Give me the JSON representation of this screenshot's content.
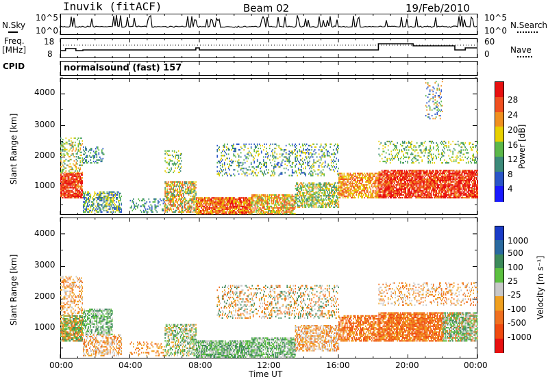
{
  "header": {
    "station": "Inuvik (fitACF)",
    "beam": "Beam 02",
    "date": "19/Feb/2010"
  },
  "left_labels": {
    "nsky": "N.Sky",
    "freq": "Freq.",
    "freq_unit": "[MHz]",
    "cpid": "CPID"
  },
  "right_labels": {
    "nsearch": "N.Search",
    "nave": "Nave"
  },
  "cpid_text": "normalsound (fast) 157",
  "noise_axis": {
    "left_top": "10^5",
    "left_bottom": "10^0",
    "right_top": "10^5",
    "right_bottom": "10^0"
  },
  "freq_axis": {
    "left_top": "18",
    "left_bottom": "8",
    "right_top": "60",
    "right_bottom": "0"
  },
  "chart_data": [
    {
      "type": "heatmap",
      "panel": "power",
      "ylabel": "Slant Range [km]",
      "yticks": [
        "1000",
        "2000",
        "3000",
        "4000"
      ],
      "ylim": [
        180,
        4500
      ],
      "colorbar_label": "Power [dB]",
      "colorbar_ticks": [
        "4",
        "8",
        "12",
        "16",
        "20",
        "24",
        "28"
      ],
      "colorbar_colors": [
        "#1a1aff",
        "#2a55c8",
        "#3c8a7a",
        "#5cb84a",
        "#e8d000",
        "#f09020",
        "#f05020",
        "#e81010"
      ]
    },
    {
      "type": "heatmap",
      "panel": "velocity",
      "ylabel": "Slant Range [km]",
      "yticks": [
        "1000",
        "2000",
        "3000",
        "4000"
      ],
      "ylim": [
        180,
        4500
      ],
      "colorbar_label": "Velocity [m s⁻¹]",
      "colorbar_ticks": [
        "1000",
        "500",
        "100",
        "25",
        "-25",
        "-100",
        "-500",
        "-1000"
      ],
      "colorbar_colors": [
        "#1a3cc8",
        "#2a6aa0",
        "#3c8a5a",
        "#5cc040",
        "#c8c8c8",
        "#f0a020",
        "#f07020",
        "#f04a10",
        "#e81010"
      ]
    }
  ],
  "time_axis": {
    "label": "Time UT",
    "ticks": [
      "00:00",
      "04:00",
      "08:00",
      "12:00",
      "16:00",
      "20:00",
      "00:00"
    ]
  }
}
